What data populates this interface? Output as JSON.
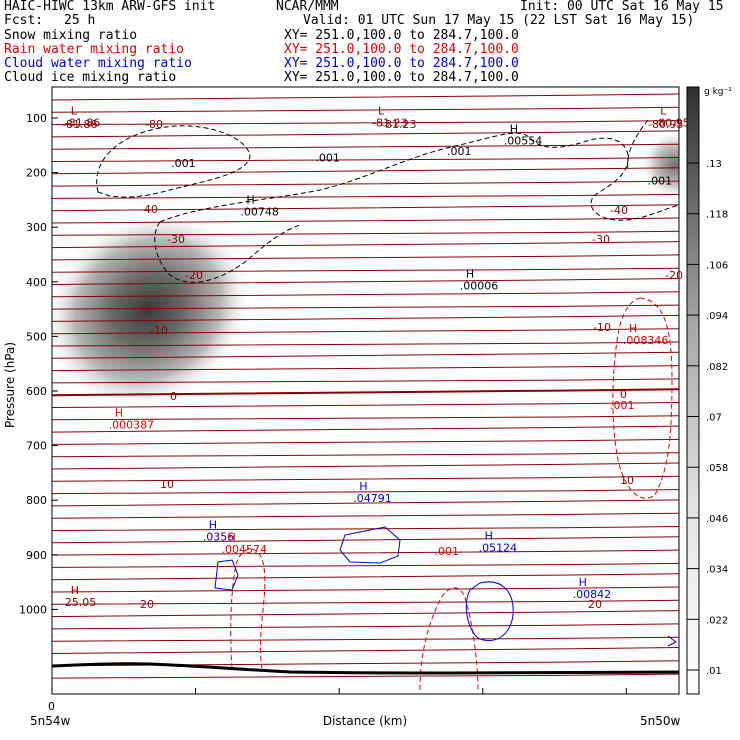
{
  "header": {
    "model": "HAIC-HIWC 13km ARW-GFS init",
    "org": "NCAR/MMM",
    "init": "Init: 00 UTC Sat 16 May 15",
    "fcst_label": "Fcst:",
    "fcst_value": "25 h",
    "valid": "Valid: 01 UTC Sun 17 May 15 (22 LST Sat 16 May 15)",
    "fields": [
      {
        "name": "Snow mixing ratio",
        "xy": "XY= 251.0,100.0 to 284.7,100.0",
        "color": "#000000"
      },
      {
        "name": "Rain water mixing ratio",
        "xy": "XY= 251.0,100.0 to 284.7,100.0",
        "color": "#e00000"
      },
      {
        "name": "Cloud water mixing ratio",
        "xy": "XY= 251.0,100.0 to 284.7,100.0",
        "color": "#0000d0"
      },
      {
        "name": "Cloud ice mixing ratio",
        "xy": "XY= 251.0,100.0 to 284.7,100.0",
        "color": "#000000"
      }
    ]
  },
  "chart_data": {
    "type": "cross-section contour",
    "ylabel": "Pressure (hPa)",
    "xlabel": "Distance (km)",
    "ylim": [
      1050,
      50
    ],
    "yticks": [
      100,
      200,
      300,
      400,
      500,
      600,
      700,
      800,
      900,
      1000
    ],
    "xtick_origin": "0",
    "x_left_label": "5n54w",
    "x_right_label": "5n50w",
    "colorbar": {
      "unit": "g kg⁻¹",
      "levels": [
        ".01",
        ".022",
        ".034",
        ".046",
        ".058",
        ".07",
        ".082",
        ".094",
        ".106",
        ".118",
        ".13"
      ]
    },
    "temperature_labels": [
      "-81.86",
      "-80",
      "-81.23",
      "-80.95",
      "-40",
      "-40",
      "-30",
      "-30",
      "-20",
      "-20",
      "-10",
      "-10",
      "0",
      "0",
      "10",
      "10",
      "20",
      "20"
    ],
    "temperature_color": "#8b0000",
    "maxima": [
      {
        "mark": "L",
        "value": "-81.86",
        "color": "#8b0000",
        "dist": 0.03,
        "p": 112
      },
      {
        "mark": "L",
        "value": "-81.23",
        "color": "#8b0000",
        "dist": 0.52,
        "p": 112
      },
      {
        "mark": "L",
        "value": "-80.95",
        "color": "#8b0000",
        "dist": 0.97,
        "p": 112
      },
      {
        "mark": "H",
        "value": ".00554",
        "color": "#000000",
        "dist": 0.73,
        "p": 145
      },
      {
        "mark": "H",
        "value": ".00748",
        "color": "#000000",
        "dist": 0.31,
        "p": 275
      },
      {
        "mark": "H",
        "value": ".00006",
        "color": "#000000",
        "dist": 0.66,
        "p": 410
      },
      {
        "mark": "H",
        "value": ".008346",
        "color": "#e00000",
        "dist": 0.92,
        "p": 510
      },
      {
        "mark": "H",
        "value": ".000387",
        "color": "#e00000",
        "dist": 0.1,
        "p": 665
      },
      {
        "mark": "H",
        "value": ".04791",
        "color": "#0000d0",
        "dist": 0.49,
        "p": 800
      },
      {
        "mark": "H",
        "value": ".0356",
        "color": "#0000d0",
        "dist": 0.25,
        "p": 870
      },
      {
        "mark": "H",
        "value": ".004574",
        "color": "#e00000",
        "dist": 0.28,
        "p": 893
      },
      {
        "mark": "H",
        "value": ".05124",
        "color": "#0000d0",
        "dist": 0.69,
        "p": 890
      },
      {
        "mark": "H",
        "value": ".00842",
        "color": "#0000d0",
        "dist": 0.84,
        "p": 975
      },
      {
        "mark": "H",
        "value": "25.05",
        "color": "#8b0000",
        "dist": 0.03,
        "p": 990
      }
    ],
    "contour_labels": [
      {
        "text": ".001",
        "color": "#000000",
        "dist": 0.19,
        "p": 190
      },
      {
        "text": ".001",
        "color": "#000000",
        "dist": 0.42,
        "p": 180
      },
      {
        "text": ".001",
        "color": "#000000",
        "dist": 0.63,
        "p": 168
      },
      {
        "text": ".001",
        "color": "#000000",
        "dist": 0.95,
        "p": 222
      },
      {
        "text": ".001",
        "color": "#e00000",
        "dist": 0.89,
        "p": 633
      },
      {
        "text": ".001",
        "color": "#e00000",
        "dist": 0.61,
        "p": 900
      }
    ]
  }
}
